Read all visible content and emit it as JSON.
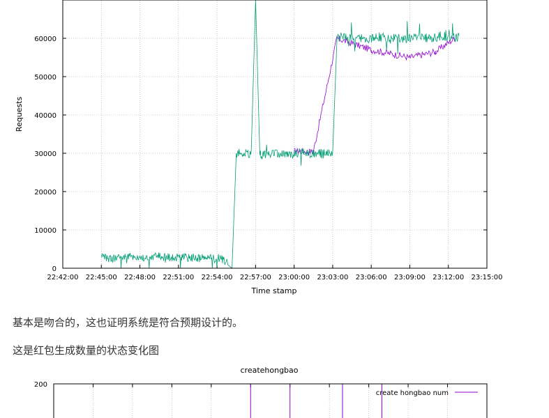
{
  "paragraphs": {
    "p1": "基本是吻合的，这也证明系统是符合预期设计的。",
    "p2": "这是红包生成数量的状态变化图"
  },
  "chart_data": [
    {
      "type": "line",
      "title": "",
      "xlabel": "Time stamp",
      "ylabel": "Requests",
      "xlim": [
        "22:42:00",
        "23:15:00"
      ],
      "ylim": [
        0,
        70000
      ],
      "x_ticks": [
        "22:42:00",
        "22:45:00",
        "22:48:00",
        "22:51:00",
        "22:54:00",
        "22:57:00",
        "23:00:00",
        "23:03:00",
        "23:06:00",
        "23:09:00",
        "23:12:00",
        "23:15:00"
      ],
      "y_ticks": [
        0,
        10000,
        20000,
        30000,
        40000,
        50000,
        60000
      ],
      "grid": true,
      "colors": {
        "primary": "#009e73",
        "secondary": "#9400d3"
      },
      "series": [
        {
          "x": [
            "22:45:00",
            "22:45:50",
            "22:46:40",
            "22:47:30",
            "22:48:30",
            "22:49:30",
            "22:50:30",
            "22:51:30",
            "22:52:30",
            "22:53:30",
            "22:54:20",
            "22:54:50",
            "22:55:10",
            "22:55:30",
            "22:56:40",
            "22:57:00",
            "22:57:20",
            "22:58:30",
            "22:59:30",
            "23:00:30",
            "23:01:30",
            "23:02:30",
            "23:03:00",
            "23:03:20",
            "23:04:30",
            "23:05:30",
            "23:06:30",
            "23:07:30",
            "23:08:30",
            "23:09:30",
            "23:10:30",
            "23:11:30",
            "23:12:30",
            "23:12:50"
          ],
          "values": [
            2800,
            2500,
            3200,
            3000,
            2600,
            3100,
            2700,
            2900,
            2600,
            2800,
            2500,
            1500,
            0,
            30000,
            29800,
            70000,
            29500,
            29800,
            29600,
            30200,
            30000,
            29800,
            30000,
            60000,
            60200,
            59800,
            60400,
            60100,
            59900,
            60300,
            60000,
            60500,
            60200,
            60400
          ]
        },
        {
          "x": [
            "23:00:00",
            "23:00:30",
            "23:01:00",
            "23:01:30",
            "23:03:20",
            "23:06:00",
            "23:09:00",
            "23:11:00",
            "23:12:30"
          ],
          "values": [
            30500,
            30600,
            30400,
            30500,
            60000,
            57000,
            55000,
            56500,
            60000
          ]
        }
      ]
    },
    {
      "type": "line",
      "title": "createhongbao",
      "ylim": [
        0,
        200
      ],
      "y_ticks": [
        200
      ],
      "grid": true,
      "series": [
        {
          "name": "create hongbao num",
          "color": "#9400d3",
          "x": [
            "22:57:00",
            "23:00:00",
            "23:04:00",
            "23:07:00"
          ],
          "values": [
            200,
            200,
            200,
            200
          ]
        }
      ]
    }
  ]
}
